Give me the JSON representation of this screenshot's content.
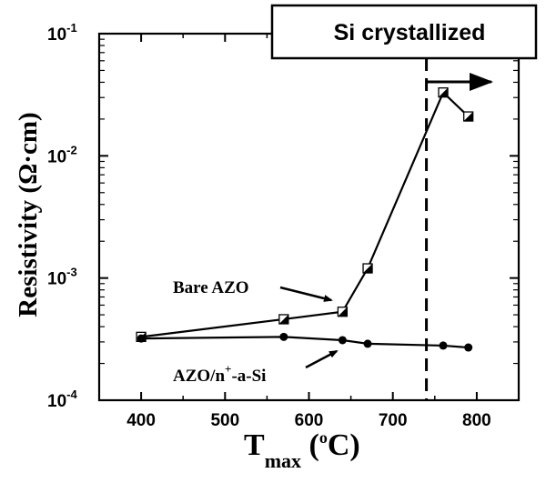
{
  "chart_data": {
    "type": "line",
    "y_scale": "log",
    "xlim": [
      350,
      850
    ],
    "ylim": [
      0.0001,
      0.1
    ],
    "grid": false,
    "x_ticks": [
      400,
      500,
      600,
      700,
      800
    ],
    "x_tick_labels": [
      "400",
      "500",
      "600",
      "700",
      "800"
    ],
    "y_ticks": [
      0.0001,
      0.001,
      0.01,
      0.1
    ],
    "y_tick_labels": [
      {
        "base": "10",
        "exp": "-4"
      },
      {
        "base": "10",
        "exp": "-3"
      },
      {
        "base": "10",
        "exp": "-2"
      },
      {
        "base": "10",
        "exp": "-1"
      }
    ],
    "ylabel": {
      "text": "Resistivity (",
      "unit": "Ω·cm",
      "close": ")"
    },
    "xlabel": {
      "main": "T",
      "sub": "max",
      "unit": " (",
      "deg": "o",
      "unit_end": "C)"
    },
    "series": [
      {
        "name": "Bare AZO",
        "marker": "half-filled-square",
        "x": [
          400,
          570,
          640,
          670,
          760,
          790
        ],
        "y": [
          0.00033,
          0.00046,
          0.00053,
          0.0012,
          0.033,
          0.021
        ]
      },
      {
        "name": "AZO/n+-a-Si",
        "marker": "filled-circle",
        "x": [
          400,
          570,
          640,
          670,
          760,
          790
        ],
        "y": [
          0.00032,
          0.00033,
          0.00031,
          0.00029,
          0.00028,
          0.00027
        ]
      }
    ],
    "annotations": {
      "bare_label": "Bare AZO",
      "si_label": {
        "pre": "AZO/n",
        "sup": "+",
        "post": "-a-Si"
      },
      "crystallized_label": "Si crystallized",
      "threshold_x": 740
    }
  }
}
